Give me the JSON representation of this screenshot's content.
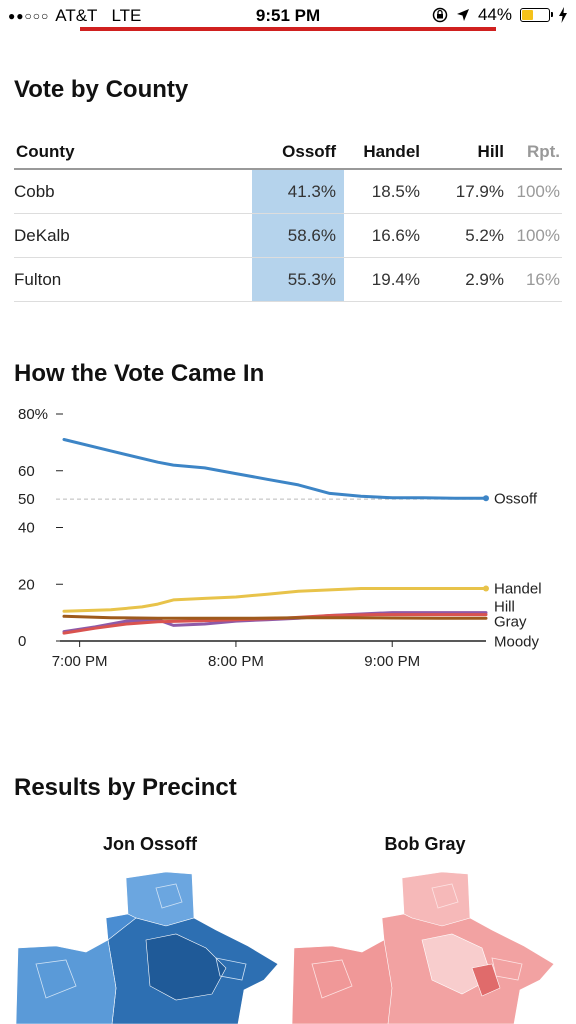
{
  "status_bar": {
    "carrier": "AT&T",
    "network": "LTE",
    "time": "9:51 PM",
    "battery": "44%",
    "battery_level": 0.44
  },
  "vote_by_county": {
    "title": "Vote by County",
    "columns": [
      "County",
      "Ossoff",
      "Handel",
      "Hill",
      "Rpt."
    ],
    "rows": [
      {
        "county": "Cobb",
        "ossoff": "41.3%",
        "handel": "18.5%",
        "hill": "17.9%",
        "rpt": "100%"
      },
      {
        "county": "DeKalb",
        "ossoff": "58.6%",
        "handel": "16.6%",
        "hill": "5.2%",
        "rpt": "100%"
      },
      {
        "county": "Fulton",
        "ossoff": "55.3%",
        "handel": "19.4%",
        "hill": "2.9%",
        "rpt": "16%"
      }
    ]
  },
  "vote_came_in": {
    "title": "How the Vote Came In"
  },
  "chart_data": {
    "type": "line",
    "title": "How the Vote Came In",
    "xlabel": "",
    "ylabel": "",
    "y_tick_labels": [
      "80%",
      "60",
      "50",
      "40",
      "20",
      "0"
    ],
    "y_ticks": [
      80,
      60,
      50,
      40,
      20,
      0
    ],
    "x_tick_labels": [
      "7:00 PM",
      "8:00 PM",
      "9:00 PM"
    ],
    "x_ticks": [
      19.0,
      20.0,
      21.0
    ],
    "xlim": [
      18.9,
      21.6
    ],
    "ylim": [
      0,
      80
    ],
    "reference_line": 50,
    "series": [
      {
        "name": "Ossoff",
        "color": "#3d85c6",
        "x": [
          18.9,
          19.2,
          19.5,
          19.6,
          19.8,
          20.0,
          20.2,
          20.4,
          20.6,
          20.8,
          21.0,
          21.2,
          21.4,
          21.6
        ],
        "y": [
          71,
          67,
          63,
          62,
          61,
          59,
          57,
          55,
          52,
          51,
          50.5,
          50.5,
          50.3,
          50.3
        ]
      },
      {
        "name": "Handel",
        "color": "#e8c34a",
        "x": [
          18.9,
          19.2,
          19.4,
          19.5,
          19.6,
          19.8,
          20.0,
          20.2,
          20.4,
          20.6,
          20.8,
          21.0,
          21.2,
          21.4,
          21.6
        ],
        "y": [
          10.5,
          11,
          12,
          13,
          14.5,
          15,
          15.5,
          16.5,
          17.5,
          18,
          18.5,
          18.5,
          18.5,
          18.5,
          18.5
        ]
      },
      {
        "name": "Hill",
        "color": "#8e5aa8",
        "x": [
          18.9,
          19.1,
          19.3,
          19.5,
          19.6,
          19.8,
          20.0,
          20.2,
          20.4,
          20.6,
          20.8,
          21.0,
          21.2,
          21.4,
          21.6
        ],
        "y": [
          3.3,
          5,
          7,
          7.5,
          5.5,
          6,
          7,
          7.5,
          8,
          9,
          9.5,
          10,
          10,
          10,
          10
        ]
      },
      {
        "name": "Gray",
        "color": "#d9534f",
        "x": [
          18.9,
          19.1,
          19.3,
          19.5,
          19.8,
          20.0,
          20.3,
          20.6,
          20.9,
          21.2,
          21.6
        ],
        "y": [
          2.8,
          4.5,
          6,
          6.8,
          7.2,
          7.5,
          8,
          9,
          9.3,
          9.3,
          9.3
        ]
      },
      {
        "name": "Moody",
        "color": "#9e5a1c",
        "x": [
          18.9,
          19.2,
          19.5,
          19.8,
          20.1,
          20.4,
          20.7,
          21.0,
          21.3,
          21.6
        ],
        "y": [
          8.7,
          8.2,
          8,
          8,
          8,
          8.2,
          8.2,
          8.1,
          8,
          8
        ]
      }
    ]
  },
  "precinct": {
    "title": "Results by Precinct",
    "maps": [
      {
        "candidate": "Jon Ossoff",
        "color": "#3f7fc4"
      },
      {
        "candidate": "Bob Gray",
        "color": "#f09898"
      }
    ]
  }
}
